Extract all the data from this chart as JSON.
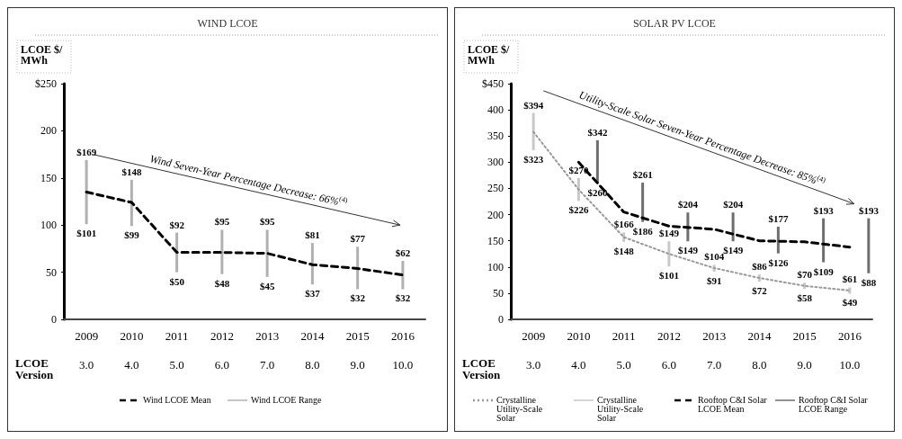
{
  "chart_data": [
    {
      "type": "line",
      "title": "WIND LCOE",
      "ylabel": "LCOE $/MWh",
      "xlabel": "LCOE Version",
      "categories": [
        "2009",
        "2010",
        "2011",
        "2012",
        "2013",
        "2014",
        "2015",
        "2016"
      ],
      "ylim": [
        0,
        250
      ],
      "yticks": [
        0,
        50,
        100,
        150,
        200,
        {
          "value": 250,
          "label": "$250"
        }
      ],
      "grid": false,
      "legend": "bottom",
      "marker": "none",
      "series": [
        {
          "name": "Wind LCOE Mean",
          "color": "#000000",
          "line_style": "dashed",
          "values": [
            135,
            124,
            71,
            71,
            70,
            58,
            54,
            47
          ]
        },
        {
          "name": "Wind LCOE Range",
          "type": "bar",
          "color": "#b0b0b0",
          "base": [
            101,
            99,
            50,
            48,
            45,
            37,
            32,
            32
          ],
          "values": [
            68,
            49,
            42,
            47,
            50,
            44,
            45,
            30
          ]
        }
      ],
      "annotations": [
        "Wind Seven-Year Percentage Decrease: 66%$^{(4)}$",
        "3.0",
        "4.0",
        "5.0",
        "6.0",
        "7.0",
        "8.0",
        "9.0",
        "10.0",
        {
          "text": "$169",
          "x": "2009",
          "y": 169
        },
        {
          "text": "$101",
          "x": "2009",
          "y": 101
        },
        {
          "text": "$148",
          "x": "2010",
          "y": 148
        },
        {
          "text": "$99",
          "x": "2010",
          "y": 99
        },
        {
          "text": "$92",
          "x": "2011",
          "y": 92
        },
        {
          "text": "$50",
          "x": "2011",
          "y": 50
        },
        {
          "text": "$95",
          "x": "2012",
          "y": 95
        },
        {
          "text": "$48",
          "x": "2012",
          "y": 48
        },
        {
          "text": "$95",
          "x": "2013",
          "y": 95
        },
        {
          "text": "$45",
          "x": "2013",
          "y": 45
        },
        {
          "text": "$81",
          "x": "2014",
          "y": 81
        },
        {
          "text": "$37",
          "x": "2014",
          "y": 37
        },
        {
          "text": "$77",
          "x": "2015",
          "y": 77
        },
        {
          "text": "$32",
          "x": "2015",
          "y": 32
        },
        {
          "text": "$62",
          "x": "2016",
          "y": 62
        },
        {
          "text": "$32",
          "x": "2016",
          "y": 32
        }
      ]
    },
    {
      "type": "line",
      "title": "SOLAR PV LCOE",
      "ylabel": "LCOE $/MWh",
      "xlabel": "LCOE Version",
      "categories": [
        "2009",
        "2010",
        "2011",
        "2012",
        "2013",
        "2014",
        "2015",
        "2016"
      ],
      "ylim": [
        0,
        450
      ],
      "yticks": [
        0,
        50,
        100,
        150,
        200,
        250,
        300,
        350,
        400,
        {
          "value": 450,
          "label": "$450"
        }
      ],
      "grid": false,
      "legend": "bottom",
      "marker": "none",
      "series": [
        {
          "name": "Crystalline Utility-Scale Solar",
          "color": "#999999",
          "line_style": "dotted",
          "values": [
            358,
            248,
            157,
            125,
            98,
            79,
            64,
            55
          ]
        },
        {
          "name": "Crystalline Utility-Scale Solar",
          "type": "bar",
          "color": "#c8c8c8",
          "base": [
            323,
            226,
            148,
            101,
            91,
            72,
            58,
            49
          ],
          "values": [
            71,
            44,
            18,
            48,
            13,
            14,
            12,
            12
          ]
        },
        {
          "name": "Rooftop C&I Solar LCOE Mean",
          "color": "#000000",
          "line_style": "dashed",
          "values": [
            null,
            300,
            205,
            178,
            172,
            150,
            148,
            138
          ]
        },
        {
          "name": "Rooftop C&I Solar LCOE Range",
          "type": "bar",
          "color": "#6e6e6e",
          "base": [
            null,
            260,
            186,
            149,
            149,
            126,
            109,
            88
          ],
          "values": [
            null,
            82,
            75,
            55,
            55,
            51,
            84,
            105
          ]
        }
      ],
      "annotations": [
        "Utility-Scale Solar Seven-Year Percentage Decrease: 85%$^{(4)}$",
        "3.0",
        "4.0",
        "5.0",
        "6.0",
        "7.0",
        "8.0",
        "9.0",
        "10.0",
        {
          "text": "$394",
          "x": "2009",
          "y": 394
        },
        {
          "text": "$323",
          "x": "2009",
          "y": 323
        },
        {
          "text": "$270",
          "x": "2010",
          "y": 270
        },
        {
          "text": "$226",
          "x": "2010",
          "y": 226
        },
        {
          "text": "$166",
          "x": "2011",
          "y": 166
        },
        {
          "text": "$148",
          "x": "2011",
          "y": 148
        },
        {
          "text": "$149",
          "x": "2012",
          "y": 149
        },
        {
          "text": "$101",
          "x": "2012",
          "y": 101
        },
        {
          "text": "$104",
          "x": "2013",
          "y": 104
        },
        {
          "text": "$91",
          "x": "2013",
          "y": 91
        },
        {
          "text": "$86",
          "x": "2014",
          "y": 86
        },
        {
          "text": "$72",
          "x": "2014",
          "y": 72
        },
        {
          "text": "$70",
          "x": "2015",
          "y": 70
        },
        {
          "text": "$58",
          "x": "2015",
          "y": 58
        },
        {
          "text": "$61",
          "x": "2016",
          "y": 61
        },
        {
          "text": "$49",
          "x": "2016",
          "y": 49
        },
        "$342",
        "$260",
        "$261",
        "$186",
        "$204",
        "$149",
        "$204",
        "$149",
        "$177",
        "$126",
        "$193",
        "$109",
        "$193",
        "$88"
      ]
    }
  ]
}
